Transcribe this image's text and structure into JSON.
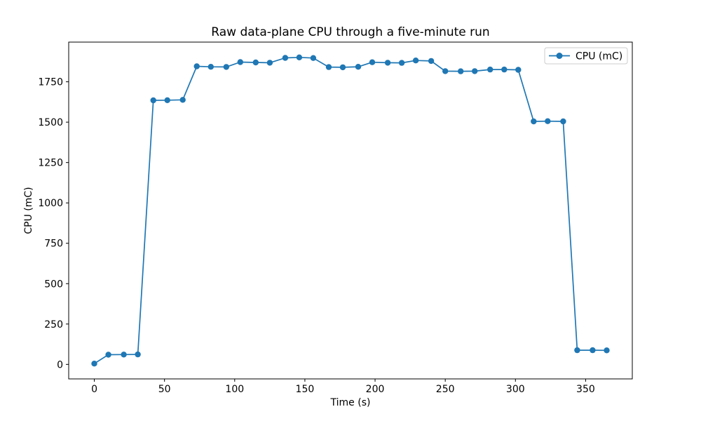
{
  "chart_data": {
    "type": "line",
    "title": "Raw data-plane CPU through a five-minute run",
    "xlabel": "Time (s)",
    "ylabel": "CPU (mC)",
    "xlim": [
      -18.25,
      383.25
    ],
    "ylim": [
      -89.8,
      1995.8
    ],
    "xticks": [
      0,
      50,
      100,
      150,
      200,
      250,
      300,
      350
    ],
    "yticks": [
      0,
      250,
      500,
      750,
      1000,
      1250,
      1500,
      1750
    ],
    "grid": false,
    "legend_position": "upper right",
    "line_color": "#1f77b4",
    "marker": "circle",
    "series": [
      {
        "name": "CPU (mC)",
        "x": [
          0,
          10,
          21,
          31,
          42,
          52,
          63,
          73,
          83,
          94,
          104,
          115,
          125,
          136,
          146,
          156,
          167,
          177,
          188,
          198,
          209,
          219,
          229,
          240,
          250,
          261,
          271,
          282,
          292,
          302,
          313,
          323,
          334,
          344,
          355,
          365
        ],
        "y": [
          5,
          60,
          61,
          62,
          1635,
          1636,
          1638,
          1846,
          1843,
          1842,
          1872,
          1870,
          1868,
          1898,
          1901,
          1897,
          1841,
          1840,
          1843,
          1871,
          1868,
          1867,
          1882,
          1879,
          1816,
          1815,
          1816,
          1826,
          1826,
          1824,
          1505,
          1506,
          1505,
          88,
          88,
          87
        ]
      }
    ]
  }
}
